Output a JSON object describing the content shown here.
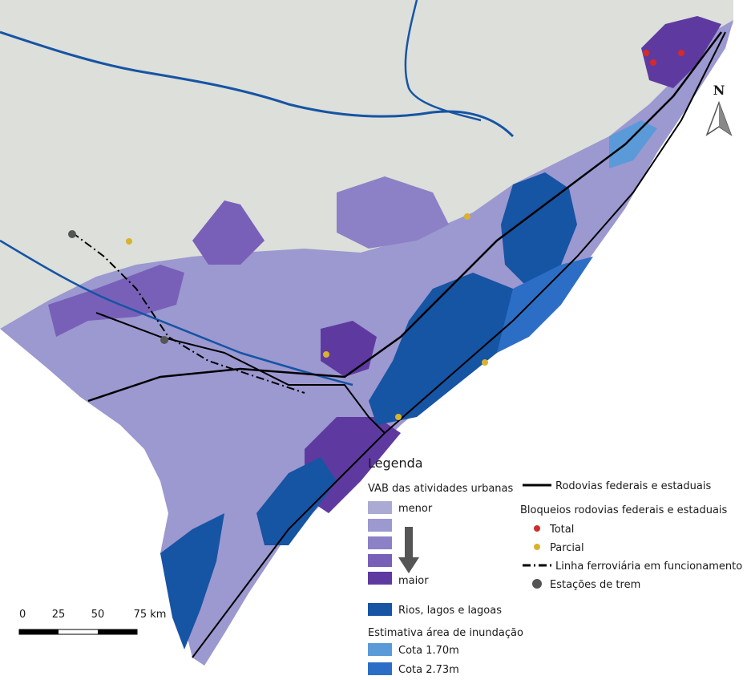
{
  "north_label": "N",
  "legend": {
    "title": "Legenda",
    "vab": {
      "title": "VAB das atividades urbanas",
      "low_label": "menor",
      "high_label": "maior",
      "colors": [
        "#aaaad4",
        "#9c98d0",
        "#8c80c6",
        "#7860b8",
        "#5e3aa0"
      ]
    },
    "water": {
      "label": "Rios, lagos e lagoas",
      "color": "#1654a4"
    },
    "flood": {
      "title": "Estimativa área de inundação",
      "items": [
        {
          "label": "Cota 1.70m",
          "color": "#5b9ad8"
        },
        {
          "label": "Cota 2.73m",
          "color": "#2c6ec6"
        }
      ]
    },
    "roads": {
      "label": "Rodovias federais e estaduais"
    },
    "blockades": {
      "title": "Bloqueios rodovias federais e estaduais",
      "items": [
        {
          "label": "Total",
          "color": "#d42a2a"
        },
        {
          "label": "Parcial",
          "color": "#d9b22e"
        }
      ]
    },
    "railway": {
      "label": "Linha ferroviária em funcionamento"
    },
    "stations": {
      "label": "Estações de trem",
      "color": "#555555"
    }
  },
  "scale": {
    "ticks": [
      "0",
      "25",
      "50",
      "75 km"
    ]
  }
}
